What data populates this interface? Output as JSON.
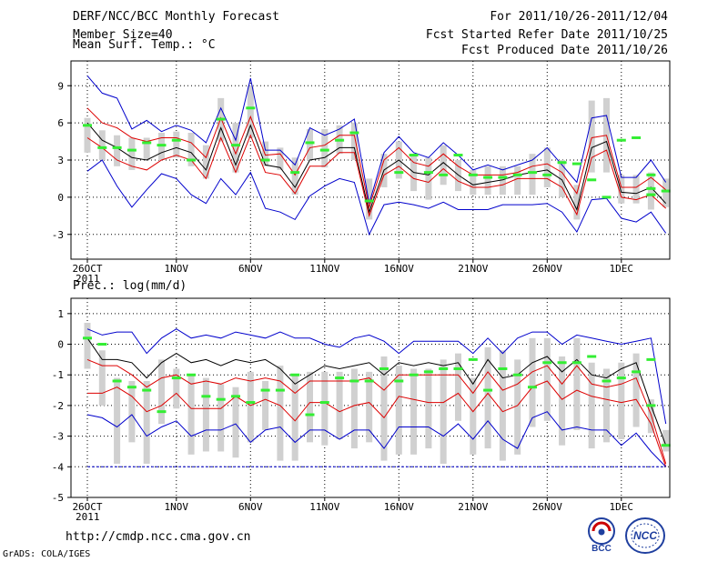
{
  "header": {
    "title": "DERF/NCC/BCC Monthly Forecast",
    "member_size": "Member Size=40",
    "period": "For 2011/10/26-2011/12/04",
    "fcst_started": "Fcst Started Refer Date 2011/10/25",
    "fcst_produced": "Fcst Produced Date 2011/10/26"
  },
  "footer": {
    "url": "http://cmdp.ncc.cma.gov.cn",
    "grads": "GrADS: COLA/IGES"
  },
  "logos": {
    "bcc": "BCC",
    "ncc": "NCC"
  },
  "colors": {
    "upper": "#0000cc",
    "lower": "#dd0000",
    "ensemble_mean": "#000000",
    "box": "#d0d0d0",
    "median": "#33ee33",
    "baseline": "#0000cc"
  },
  "chart_data": [
    {
      "type": "line",
      "ylabel": "Mean Surf. Temp.: °C",
      "ylim": [
        -5,
        11
      ],
      "yticks": [
        -3,
        0,
        3,
        6,
        9
      ],
      "xticks": [
        {
          "day": 0,
          "label": "26OCT"
        },
        {
          "day": 6,
          "label": "1NOV"
        },
        {
          "day": 11,
          "label": "6NOV"
        },
        {
          "day": 16,
          "label": "11NOV"
        },
        {
          "day": 21,
          "label": "16NOV"
        },
        {
          "day": 26,
          "label": "21NOV"
        },
        {
          "day": 31,
          "label": "26NOV"
        },
        {
          "day": 36,
          "label": "1DEC"
        }
      ],
      "year_label": "2011",
      "series": [
        {
          "name": "max",
          "values": [
            9.8,
            8.4,
            8.0,
            5.5,
            6.2,
            5.3,
            5.8,
            5.4,
            4.4,
            7.2,
            4.6,
            9.6,
            3.8,
            3.8,
            2.6,
            5.6,
            5.0,
            5.5,
            6.3,
            -0.5,
            3.6,
            4.9,
            3.6,
            3.2,
            4.4,
            3.4,
            2.2,
            2.6,
            2.2,
            2.6,
            3.0,
            4.0,
            2.6,
            1.2,
            6.4,
            6.6,
            1.6,
            1.6,
            3.0,
            1.2
          ]
        },
        {
          "name": "upper",
          "values": [
            7.2,
            6.0,
            5.6,
            4.8,
            4.5,
            4.8,
            4.8,
            4.4,
            3.2,
            6.4,
            3.5,
            6.5,
            3.4,
            3.5,
            1.8,
            4.0,
            4.2,
            5.0,
            5.0,
            -0.8,
            3.0,
            4.0,
            2.8,
            2.5,
            3.5,
            2.5,
            1.8,
            1.8,
            1.8,
            2.0,
            2.5,
            2.7,
            2.0,
            0.3,
            4.8,
            5.0,
            0.8,
            0.8,
            1.6,
            0.6
          ]
        },
        {
          "name": "mean",
          "values": [
            6.0,
            4.6,
            4.0,
            3.2,
            3.0,
            3.6,
            4.0,
            3.6,
            2.2,
            5.6,
            2.6,
            5.8,
            2.6,
            2.4,
            0.8,
            3.0,
            3.2,
            4.0,
            4.0,
            -1.2,
            2.2,
            3.0,
            2.0,
            1.8,
            2.8,
            1.8,
            1.0,
            1.2,
            1.4,
            1.8,
            2.0,
            2.2,
            1.4,
            -1.0,
            4.0,
            4.5,
            0.4,
            0.3,
            0.8,
            -0.5
          ]
        },
        {
          "name": "lower",
          "values": [
            4.8,
            4.0,
            3.0,
            2.5,
            2.2,
            3.0,
            3.4,
            3.0,
            1.5,
            4.8,
            2.0,
            5.0,
            2.0,
            1.8,
            0.3,
            2.5,
            2.5,
            3.6,
            3.6,
            -1.5,
            1.8,
            2.5,
            1.5,
            1.2,
            2.3,
            1.3,
            0.8,
            0.8,
            1.0,
            1.5,
            1.5,
            1.5,
            0.8,
            -1.4,
            3.2,
            3.8,
            0.0,
            -0.2,
            0.2,
            -0.9
          ]
        },
        {
          "name": "min",
          "values": [
            2.1,
            3.0,
            0.9,
            -0.8,
            0.6,
            1.9,
            1.5,
            0.2,
            -0.5,
            1.5,
            0.2,
            2.0,
            -0.9,
            -1.2,
            -1.8,
            0.1,
            0.9,
            1.5,
            1.2,
            -3.0,
            -0.6,
            -0.4,
            -0.6,
            -0.9,
            -0.4,
            -1.0,
            -1.0,
            -1.0,
            -0.6,
            -0.6,
            -0.6,
            -0.5,
            -1.2,
            -2.8,
            -0.2,
            -0.1,
            -1.7,
            -2.0,
            -1.2,
            -2.9
          ]
        }
      ],
      "boxes": [
        [
          3.6,
          6.4
        ],
        [
          3.0,
          5.4
        ],
        [
          2.5,
          5.0
        ],
        [
          2.2,
          4.8
        ],
        [
          3.0,
          4.8
        ],
        [
          3.0,
          5.2
        ],
        [
          3.2,
          5.3
        ],
        [
          2.5,
          5.2
        ],
        [
          1.5,
          4.2
        ],
        [
          4.5,
          8.0
        ],
        [
          2.0,
          6.0
        ],
        [
          4.8,
          9.0
        ],
        [
          2.5,
          4.5
        ],
        [
          2.2,
          4.0
        ],
        [
          0.2,
          3.2
        ],
        [
          3.0,
          5.5
        ],
        [
          2.4,
          5.5
        ],
        [
          3.5,
          5.8
        ],
        [
          3.0,
          6.0
        ],
        [
          -1.8,
          1.5
        ],
        [
          0.8,
          3.5
        ],
        [
          1.5,
          4.5
        ],
        [
          0.5,
          3.5
        ],
        [
          -0.2,
          3.2
        ],
        [
          1.0,
          4.2
        ],
        [
          0.5,
          3.0
        ],
        [
          0.2,
          2.2
        ],
        [
          0.2,
          2.5
        ],
        [
          0.2,
          2.5
        ],
        [
          0.2,
          2.5
        ],
        [
          0.2,
          3.5
        ],
        [
          0.8,
          4.0
        ],
        [
          0.0,
          3.0
        ],
        [
          -1.8,
          1.0
        ],
        [
          2.0,
          7.8
        ],
        [
          2.0,
          8.0
        ],
        [
          -0.5,
          1.8
        ],
        [
          -0.5,
          1.8
        ],
        [
          -1.0,
          2.0
        ],
        [
          -0.8,
          1.5
        ]
      ],
      "medians": [
        5.8,
        4.0,
        4.0,
        3.8,
        4.4,
        4.2,
        4.6,
        3.0,
        6.3,
        4.2,
        7.2,
        3.0,
        2.0,
        4.4,
        3.8,
        4.6,
        5.2,
        -0.3,
        2.0,
        3.4,
        2.0,
        1.8,
        3.4,
        1.8,
        1.6,
        1.6,
        1.8,
        2.0,
        1.8,
        2.8,
        2.7,
        1.4,
        0.0,
        4.6,
        4.8,
        0.7,
        0.5,
        1.8,
        0.2,
        0.2
      ],
      "median_days": [
        0,
        1,
        2,
        3,
        4,
        5,
        6,
        7,
        9,
        10,
        11,
        12,
        14,
        15,
        16,
        17,
        18,
        19,
        21,
        22,
        23,
        24,
        25,
        26,
        27,
        28,
        29,
        30,
        31,
        32,
        33,
        34,
        35,
        36,
        37,
        38,
        39,
        38,
        38,
        38
      ]
    },
    {
      "type": "line",
      "ylabel": "Prec.: log(mm/d)",
      "ylim": [
        -5,
        1.5
      ],
      "yticks": [
        -5,
        -4,
        -3,
        -2,
        -1,
        0,
        1
      ],
      "xticks": [
        {
          "day": 0,
          "label": "26OCT"
        },
        {
          "day": 6,
          "label": "1NOV"
        },
        {
          "day": 11,
          "label": "6NOV"
        },
        {
          "day": 16,
          "label": "11NOV"
        },
        {
          "day": 21,
          "label": "16NOV"
        },
        {
          "day": 26,
          "label": "21NOV"
        },
        {
          "day": 31,
          "label": "26NOV"
        },
        {
          "day": 36,
          "label": "1DEC"
        }
      ],
      "year_label": "2011",
      "baseline": -4,
      "series": [
        {
          "name": "max",
          "values": [
            0.5,
            0.3,
            0.4,
            0.4,
            -0.3,
            0.2,
            0.5,
            0.2,
            0.3,
            0.2,
            0.4,
            0.3,
            0.2,
            0.4,
            0.2,
            0.2,
            0.0,
            -0.1,
            0.2,
            0.3,
            0.1,
            -0.3,
            0.1,
            0.1,
            0.1,
            0.1,
            -0.3,
            0.2,
            -0.3,
            0.2,
            0.4,
            0.4,
            0.0,
            0.3,
            0.2,
            0.1,
            0.0,
            0.1,
            0.2,
            -2.6
          ]
        },
        {
          "name": "mean",
          "values": [
            0.2,
            -0.5,
            -0.5,
            -0.6,
            -1.1,
            -0.6,
            -0.3,
            -0.6,
            -0.5,
            -0.7,
            -0.5,
            -0.6,
            -0.5,
            -0.8,
            -1.3,
            -1.0,
            -0.7,
            -0.8,
            -0.7,
            -0.6,
            -1.0,
            -0.6,
            -0.7,
            -0.6,
            -0.7,
            -0.6,
            -1.3,
            -0.5,
            -1.1,
            -1.0,
            -0.6,
            -0.4,
            -0.9,
            -0.5,
            -1.0,
            -1.1,
            -0.8,
            -0.6,
            -2.0,
            -3.3
          ]
        },
        {
          "name": "upper",
          "values": [
            -0.5,
            -0.7,
            -0.7,
            -1.0,
            -1.4,
            -1.1,
            -1.0,
            -1.3,
            -1.2,
            -1.3,
            -1.1,
            -1.2,
            -1.1,
            -1.2,
            -1.6,
            -1.2,
            -1.2,
            -1.2,
            -1.2,
            -1.1,
            -1.5,
            -1.0,
            -1.0,
            -1.0,
            -1.0,
            -1.0,
            -1.6,
            -0.9,
            -1.5,
            -1.3,
            -0.9,
            -0.7,
            -1.3,
            -0.7,
            -1.3,
            -1.4,
            -1.3,
            -1.1,
            -2.3,
            -3.9
          ]
        },
        {
          "name": "lower",
          "values": [
            -1.6,
            -1.6,
            -1.4,
            -1.7,
            -2.2,
            -2.0,
            -1.6,
            -2.1,
            -2.1,
            -2.1,
            -1.7,
            -2.0,
            -1.8,
            -2.0,
            -2.5,
            -1.9,
            -1.9,
            -2.2,
            -2.0,
            -1.9,
            -2.4,
            -1.7,
            -1.8,
            -1.9,
            -1.9,
            -1.6,
            -2.2,
            -1.6,
            -2.2,
            -2.0,
            -1.4,
            -1.2,
            -1.8,
            -1.5,
            -1.7,
            -1.8,
            -1.9,
            -1.8,
            -2.6,
            -4.0
          ]
        },
        {
          "name": "min",
          "values": [
            -2.3,
            -2.4,
            -2.7,
            -2.3,
            -3.0,
            -2.7,
            -2.5,
            -3.0,
            -2.8,
            -2.8,
            -2.6,
            -3.2,
            -2.8,
            -2.7,
            -3.2,
            -2.8,
            -2.8,
            -3.1,
            -2.8,
            -2.8,
            -3.4,
            -2.7,
            -2.7,
            -2.7,
            -3.0,
            -2.6,
            -3.1,
            -2.5,
            -3.1,
            -3.4,
            -2.4,
            -2.2,
            -2.8,
            -2.7,
            -2.8,
            -2.8,
            -3.3,
            -2.9,
            -3.5,
            -4.0
          ]
        }
      ],
      "boxes": [
        [
          -0.8,
          0.7
        ],
        [
          -2.0,
          -0.2
        ],
        [
          -3.9,
          -1.1
        ],
        [
          -3.2,
          -1.2
        ],
        [
          -3.9,
          -1.2
        ],
        [
          -2.6,
          -0.5
        ],
        [
          -2.1,
          -0.8
        ],
        [
          -3.6,
          -1.0
        ],
        [
          -3.5,
          -1.1
        ],
        [
          -3.5,
          -1.3
        ],
        [
          -3.7,
          -1.4
        ],
        [
          -3.2,
          -0.9
        ],
        [
          -2.8,
          -1.2
        ],
        [
          -3.8,
          -0.7
        ],
        [
          -3.8,
          -1.0
        ],
        [
          -3.2,
          -0.9
        ],
        [
          -3.3,
          -0.9
        ],
        [
          -3.1,
          -0.9
        ],
        [
          -3.4,
          -0.8
        ],
        [
          -3.2,
          -0.9
        ],
        [
          -3.8,
          -0.4
        ],
        [
          -3.6,
          -0.7
        ],
        [
          -3.6,
          -0.8
        ],
        [
          -3.4,
          -0.8
        ],
        [
          -3.9,
          -0.5
        ],
        [
          -2.5,
          -0.3
        ],
        [
          -3.6,
          -1.1
        ],
        [
          -3.4,
          -0.1
        ],
        [
          -3.8,
          -0.2
        ],
        [
          -3.6,
          -0.5
        ],
        [
          -2.7,
          0.2
        ],
        [
          -2.5,
          0.2
        ],
        [
          -3.3,
          -0.4
        ],
        [
          -2.8,
          0.2
        ],
        [
          -3.4,
          -0.6
        ],
        [
          -3.2,
          -0.8
        ],
        [
          -3.1,
          -0.6
        ],
        [
          -2.7,
          -0.3
        ],
        [
          -2.9,
          -1.8
        ],
        [
          -3.5,
          -2.8
        ]
      ],
      "medians": [
        0.2,
        0.0,
        -1.2,
        -1.4,
        -1.5,
        -2.2,
        -1.1,
        -1.0,
        -1.7,
        -1.8,
        -1.7,
        -1.9,
        -1.5,
        -1.5,
        -1.0,
        -2.3,
        -1.9,
        -1.1,
        -1.2,
        -1.2,
        -0.8,
        -1.2,
        -1.0,
        -0.9,
        -0.8,
        -0.8,
        -0.5,
        -1.5,
        -0.8,
        -1.0,
        -1.4,
        -0.6,
        -0.6,
        -0.6,
        -0.4,
        -1.2,
        -1.1,
        -0.9,
        -0.5,
        -2.0,
        -3.3
      ],
      "median_days": [
        0,
        1,
        2,
        3,
        4,
        5,
        6,
        7,
        8,
        9,
        10,
        11,
        12,
        13,
        14,
        15,
        16,
        17,
        18,
        19,
        20,
        21,
        22,
        23,
        24,
        25,
        26,
        27,
        28,
        29,
        30,
        31,
        32,
        33,
        34,
        35,
        36,
        37,
        38,
        38,
        39
      ]
    }
  ]
}
